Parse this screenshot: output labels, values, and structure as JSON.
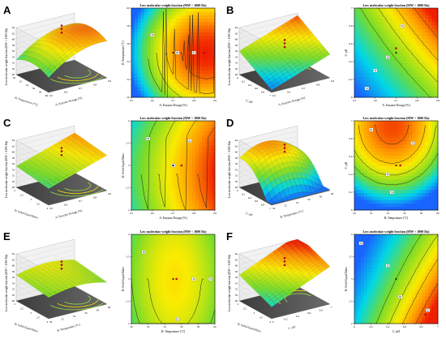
{
  "panel_labels": [
    "A",
    "B",
    "C",
    "D",
    "E",
    "F"
  ],
  "chart_data": [
    {
      "panel": "A",
      "type": "heatmap",
      "title": "Low molecular weight fraction (MW < 1000 Da)",
      "surface_xlabel": "A: Enzyme Dosage [%]",
      "surface_ylabel": "B: Temperature [°C]",
      "surface_zlabel": "Low molecular weight fraction (MW < 1000 Da)",
      "xlabel": "A: Enzyme Dosage [%]",
      "ylabel": "B: Temperature [°C]",
      "xlim": [
        0.5,
        0.9
      ],
      "ylim": [
        50,
        60
      ],
      "xticks": [
        "0.5",
        "0.6",
        "0.7",
        "0.8",
        "0.9"
      ],
      "yticks": [
        "50",
        "52",
        "54",
        "56",
        "58",
        "60"
      ],
      "surface_xticks": [
        "0.5",
        "0.6",
        "0.7",
        "0.8",
        "0.9"
      ],
      "surface_yticks": [
        "50",
        "52",
        "54",
        "56",
        "58",
        "60"
      ],
      "zticks": [
        "48",
        "50",
        "52",
        "54",
        "56",
        "58",
        "60",
        "62",
        "64"
      ],
      "optimum": [
        0.85,
        55
      ],
      "center_point": [
        0.7,
        55
      ],
      "contour_labels": [
        {
          "text": "58",
          "x": 0.6,
          "y": 57
        },
        {
          "text": "60",
          "x": 0.72,
          "y": 55
        },
        {
          "text": "62",
          "x": 0.8,
          "y": 55
        }
      ],
      "surface_shape": "ridge",
      "colors": {
        "low": "#1f78ff",
        "mid": "#7ed321",
        "high": "#ff2d00"
      }
    },
    {
      "panel": "B",
      "type": "heatmap",
      "title": "Low molecular weight fraction (MW < 1000 Da)",
      "surface_xlabel": "A: Enzyme Dosage [%]",
      "surface_ylabel": "C: pH",
      "surface_zlabel": "Low molecular weight fraction (MW < 1000 Da)",
      "xlabel": "A: Enzyme Dosage [%]",
      "ylabel": "C: pH",
      "xlim": [
        0.5,
        0.9
      ],
      "ylim": [
        6,
        7
      ],
      "xticks": [
        "0.5",
        "0.6",
        "0.7",
        "0.8",
        "0.9"
      ],
      "yticks": [
        "6",
        "6.2",
        "6.4",
        "6.6",
        "6.8",
        "7"
      ],
      "surface_xticks": [
        "0.5",
        "0.6",
        "0.7",
        "0.8",
        "0.9"
      ],
      "surface_yticks": [
        "6",
        "6.2",
        "6.4",
        "6.6",
        "6.8",
        "7"
      ],
      "zticks": [
        "48",
        "50",
        "52",
        "54",
        "56",
        "58",
        "60",
        "62",
        "64"
      ],
      "optimum": [
        0.7,
        6.55
      ],
      "center_point": [
        0.7,
        6.5
      ],
      "contour_labels": [
        {
          "text": "52",
          "x": 0.56,
          "y": 6.1
        },
        {
          "text": "56",
          "x": 0.6,
          "y": 6.3
        },
        {
          "text": "58",
          "x": 0.66,
          "y": 6.45
        },
        {
          "text": "60",
          "x": 0.73,
          "y": 6.8
        }
      ],
      "surface_shape": "plane",
      "colors": {
        "low": "#1f78ff",
        "mid": "#7ed321",
        "high": "#ff2d00"
      }
    },
    {
      "panel": "C",
      "type": "heatmap",
      "title": "Low molecular weight fraction (MW < 1000 Da)",
      "surface_xlabel": "A: Enzyme Dosage [%]",
      "surface_ylabel": "D: Solid-liquid Ratio",
      "surface_zlabel": "Low molecular weight fraction (MW < 1000 Da)",
      "xlabel": "A: Enzyme Dosage [%]",
      "ylabel": "D: Solid-liquid Ratio",
      "xlim": [
        0.5,
        0.9
      ],
      "ylim": [
        2,
        4
      ],
      "xticks": [
        "0.5",
        "0.6",
        "0.7",
        "0.8",
        "0.9"
      ],
      "yticks": [
        "2",
        "2.5",
        "3",
        "3.5",
        "4"
      ],
      "surface_xticks": [
        "0.5",
        "0.6",
        "0.7",
        "0.8",
        "0.9"
      ],
      "surface_yticks": [
        "2",
        "2.5",
        "3",
        "3.5",
        "4"
      ],
      "zticks": [
        "48",
        "50",
        "52",
        "54",
        "56",
        "58",
        "60",
        "62",
        "64"
      ],
      "optimum": [
        0.74,
        3
      ],
      "center_point": [
        0.7,
        3
      ],
      "contour_labels": [
        {
          "text": "58",
          "x": 0.58,
          "y": 3.6
        },
        {
          "text": "60",
          "x": 0.7,
          "y": 3
        },
        {
          "text": "62",
          "x": 0.78,
          "y": 3.55
        }
      ],
      "surface_shape": "ridge",
      "colors": {
        "low": "#1f78ff",
        "mid": "#7ed321",
        "high": "#ff2d00"
      }
    },
    {
      "panel": "D",
      "type": "heatmap",
      "title": "Low molecular weight fraction (MW < 1000 Da)",
      "surface_xlabel": "B: Temperature [°C]",
      "surface_ylabel": "C: pH",
      "surface_zlabel": "Low molecular weight fraction (MW < 1000 Da)",
      "xlabel": "B: Temperature [°C]",
      "ylabel": "C: pH",
      "xlim": [
        50,
        60
      ],
      "ylim": [
        6,
        7
      ],
      "xticks": [
        "50",
        "52",
        "54",
        "56",
        "58",
        "60"
      ],
      "yticks": [
        "6",
        "6.2",
        "6.4",
        "6.6",
        "6.8",
        "7"
      ],
      "surface_xticks": [
        "50",
        "52",
        "54",
        "56",
        "58",
        "60"
      ],
      "surface_yticks": [
        "6",
        "6.2",
        "6.4",
        "6.6",
        "6.8",
        "7"
      ],
      "zticks": [
        "48",
        "50",
        "52",
        "54",
        "56",
        "58",
        "60",
        "62",
        "64"
      ],
      "optimum": [
        55.5,
        6.5
      ],
      "center_point": [
        55,
        6.5
      ],
      "contour_labels": [
        {
          "text": "58",
          "x": 57,
          "y": 6.75
        },
        {
          "text": "56",
          "x": 54.5,
          "y": 6.2
        },
        {
          "text": "58",
          "x": 54,
          "y": 6.4
        },
        {
          "text": "60",
          "x": 52,
          "y": 6.9
        }
      ],
      "surface_shape": "dome",
      "colors": {
        "low": "#1f78ff",
        "mid": "#7ed321",
        "high": "#ff2d00"
      }
    },
    {
      "panel": "E",
      "type": "heatmap",
      "title": "Low molecular weight fraction (MW < 1000 Da)",
      "surface_xlabel": "B: Temperature [°C]",
      "surface_ylabel": "D: Solid-liquid Ratio",
      "surface_zlabel": "Low molecular weight fraction (MW < 1000 Da)",
      "xlabel": "B: Temperature [°C]",
      "ylabel": "D: Solid-liquid Ratio",
      "xlim": [
        50,
        60
      ],
      "ylim": [
        2,
        4
      ],
      "xticks": [
        "50",
        "52",
        "54",
        "56",
        "58",
        "60"
      ],
      "yticks": [
        "2",
        "2.5",
        "3",
        "3.5",
        "4"
      ],
      "surface_xticks": [
        "50",
        "52",
        "54",
        "56",
        "58",
        "60"
      ],
      "surface_yticks": [
        "2",
        "2.5",
        "3",
        "3.5",
        "4"
      ],
      "zticks": [
        "48",
        "50",
        "52",
        "54",
        "56",
        "58",
        "60",
        "62",
        "64"
      ],
      "optimum": [
        55.4,
        3
      ],
      "center_point": [
        55,
        3
      ],
      "contour_labels": [
        {
          "text": "60",
          "x": 51.5,
          "y": 3.6
        },
        {
          "text": "62",
          "x": 55.5,
          "y": 2.1
        },
        {
          "text": "60",
          "x": 57.5,
          "y": 3
        },
        {
          "text": "58",
          "x": 59.5,
          "y": 3
        }
      ],
      "surface_shape": "flat",
      "colors": {
        "low": "#1f78ff",
        "mid": "#7ed321",
        "high": "#ff2d00"
      }
    },
    {
      "panel": "F",
      "type": "heatmap",
      "title": "Low molecular weight fraction (MW < 1000 Da)",
      "surface_xlabel": "C: pH",
      "surface_ylabel": "D: Solid-liquid Ratio",
      "surface_zlabel": "Low molecular weight fraction (MW < 1000 Da)",
      "xlabel": "C: pH",
      "ylabel": "D: Solid-liquid Ratio",
      "xlim": [
        6,
        7
      ],
      "ylim": [
        2,
        4
      ],
      "xticks": [
        "6",
        "6.2",
        "6.4",
        "6.6",
        "6.8",
        "7"
      ],
      "yticks": [
        "2",
        "2.5",
        "3",
        "3.5",
        "4"
      ],
      "surface_xticks": [
        "6",
        "6.2",
        "6.4",
        "6.6",
        "6.8",
        "7"
      ],
      "surface_yticks": [
        "2",
        "2.5",
        "3",
        "3.5",
        "4"
      ],
      "zticks": [
        "48",
        "50",
        "52",
        "54",
        "56",
        "58",
        "60",
        "62",
        "64"
      ],
      "optimum": [
        6.85,
        2.2
      ],
      "center_point": [
        6.5,
        3
      ],
      "contour_labels": [
        {
          "text": "56",
          "x": 6.08,
          "y": 3.8
        },
        {
          "text": "58",
          "x": 6.4,
          "y": 3.3
        },
        {
          "text": "60",
          "x": 6.55,
          "y": 2.6
        },
        {
          "text": "62",
          "x": 6.88,
          "y": 2.3
        }
      ],
      "surface_shape": "slope",
      "colors": {
        "low": "#1f78ff",
        "mid": "#7ed321",
        "high": "#ff2d00"
      }
    }
  ]
}
